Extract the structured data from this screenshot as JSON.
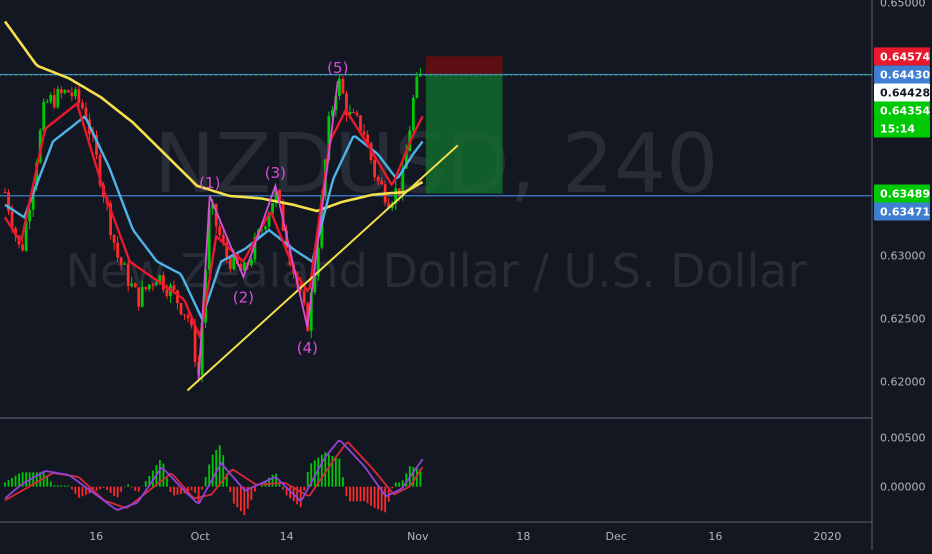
{
  "watermark": {
    "symbol": "NZDUSD, 240",
    "description": "New Zealand Dollar / U.S. Dollar"
  },
  "colors": {
    "background": "#131722",
    "axis_text": "#b2b5be",
    "grid_separator": "#2a2e39",
    "up_candle": "#00c805",
    "down_candle": "#ff2b2b",
    "ma_yellow": "#f5e04b",
    "ma_blue": "#4fb3e8",
    "ma_red": "#e8192c",
    "wave_purple": "#d64fd6",
    "hline_blue": "#3f7fd1",
    "hline_green": "#3fae5a",
    "trendline_yellow": "#f5e04b",
    "macd_line": "#8e44d9",
    "signal_line": "#d8283a"
  },
  "chart_data": [
    {
      "type": "candlestick",
      "name": "price",
      "symbol": "NZDUSD",
      "timeframe": "240",
      "title": "NZDUSD, 240",
      "subtitle": "New Zealand Dollar / U.S. Dollar",
      "x_ticks": [
        "16",
        "Oct",
        "14",
        "Nov",
        "18",
        "Dec",
        "16",
        "2020"
      ],
      "y_ticks": [
        "0.65000",
        "0.63000",
        "0.62500",
        "0.62000"
      ],
      "ylim": [
        0.6172,
        0.6502
      ],
      "price_labels": [
        {
          "value": "0.64574",
          "color": "#e8192c"
        },
        {
          "value": "0.64430",
          "color": "#3f7fd1"
        },
        {
          "value": "0.64428",
          "color": "#ffffff"
        },
        {
          "value": "0.64354",
          "color": "#00c805"
        },
        {
          "value": "15:14",
          "color": "#00c805"
        },
        {
          "value": "0.63489",
          "color": "#00c805"
        },
        {
          "value": "0.63471",
          "color": "#3f7fd1"
        }
      ],
      "horizontal_lines": [
        {
          "value": 0.6443,
          "style": "solid",
          "color": "#3f7fd1"
        },
        {
          "value": 0.64428,
          "style": "dotted",
          "color": "#3fae5a"
        },
        {
          "value": 0.63471,
          "style": "solid",
          "color": "#3f7fd1"
        }
      ],
      "wave_labels": [
        {
          "label": "(1)",
          "x": 12.8,
          "y": 0.6347
        },
        {
          "label": "(2)",
          "x": 14.9,
          "y": 0.628
        },
        {
          "label": "(3)",
          "x": 16.9,
          "y": 0.6355
        },
        {
          "label": "(4)",
          "x": 18.9,
          "y": 0.624
        },
        {
          "label": "(5)",
          "x": 20.8,
          "y": 0.6438
        }
      ],
      "wave_path": [
        {
          "x": 12.1,
          "y": 0.6202
        },
        {
          "x": 12.8,
          "y": 0.6347
        },
        {
          "x": 14.9,
          "y": 0.6283
        },
        {
          "x": 16.9,
          "y": 0.6355
        },
        {
          "x": 18.9,
          "y": 0.6243
        },
        {
          "x": 20.8,
          "y": 0.6438
        }
      ],
      "trendline": {
        "from": {
          "x": 11.4,
          "y": 0.6193
        },
        "to": {
          "x": 28.3,
          "y": 0.6387
        }
      },
      "position_box": {
        "x_start": 26.3,
        "x_end": 31.1,
        "y_stop": 0.64574,
        "y_entry": 0.64428,
        "y_target": 0.63489
      },
      "ohlc_seeds": [
        {
          "x": 0,
          "y": 0.635
        },
        {
          "x": 1,
          "y": 0.63
        },
        {
          "x": 2,
          "y": 0.638
        },
        {
          "x": 2.5,
          "y": 0.642
        },
        {
          "x": 4,
          "y": 0.643
        },
        {
          "x": 5,
          "y": 0.6415
        },
        {
          "x": 6,
          "y": 0.636
        },
        {
          "x": 7,
          "y": 0.63
        },
        {
          "x": 8.3,
          "y": 0.6265
        },
        {
          "x": 9.5,
          "y": 0.6285
        },
        {
          "x": 10.5,
          "y": 0.627
        },
        {
          "x": 11.5,
          "y": 0.625
        },
        {
          "x": 12.1,
          "y": 0.6205
        },
        {
          "x": 12.8,
          "y": 0.634
        },
        {
          "x": 13.8,
          "y": 0.63
        },
        {
          "x": 14.9,
          "y": 0.6285
        },
        {
          "x": 16,
          "y": 0.632
        },
        {
          "x": 16.9,
          "y": 0.635
        },
        {
          "x": 18,
          "y": 0.629
        },
        {
          "x": 18.9,
          "y": 0.6245
        },
        {
          "x": 19.5,
          "y": 0.63
        },
        {
          "x": 20.2,
          "y": 0.64
        },
        {
          "x": 20.8,
          "y": 0.644
        },
        {
          "x": 21.5,
          "y": 0.641
        },
        {
          "x": 22.4,
          "y": 0.64
        },
        {
          "x": 23.2,
          "y": 0.636
        },
        {
          "x": 24,
          "y": 0.6345
        },
        {
          "x": 24.8,
          "y": 0.6355
        },
        {
          "x": 25.6,
          "y": 0.643
        },
        {
          "x": 26.1,
          "y": 0.6445
        }
      ],
      "ma_yellow": [
        {
          "x": 0,
          "y": 0.6485
        },
        {
          "x": 2,
          "y": 0.645
        },
        {
          "x": 4,
          "y": 0.644
        },
        {
          "x": 6,
          "y": 0.6425
        },
        {
          "x": 8,
          "y": 0.6405
        },
        {
          "x": 10,
          "y": 0.638
        },
        {
          "x": 12,
          "y": 0.6355
        },
        {
          "x": 14,
          "y": 0.6347
        },
        {
          "x": 16,
          "y": 0.6345
        },
        {
          "x": 18,
          "y": 0.634
        },
        {
          "x": 19.5,
          "y": 0.6335
        },
        {
          "x": 21,
          "y": 0.6342
        },
        {
          "x": 23,
          "y": 0.6348
        },
        {
          "x": 25,
          "y": 0.635
        },
        {
          "x": 26.1,
          "y": 0.6358
        }
      ],
      "ma_blue": [
        {
          "x": 0,
          "y": 0.634
        },
        {
          "x": 1.2,
          "y": 0.633
        },
        {
          "x": 3,
          "y": 0.639
        },
        {
          "x": 5,
          "y": 0.641
        },
        {
          "x": 6.5,
          "y": 0.637
        },
        {
          "x": 8,
          "y": 0.632
        },
        {
          "x": 9.5,
          "y": 0.6295
        },
        {
          "x": 11,
          "y": 0.6285
        },
        {
          "x": 12.3,
          "y": 0.625
        },
        {
          "x": 13.5,
          "y": 0.6295
        },
        {
          "x": 15,
          "y": 0.6305
        },
        {
          "x": 16.5,
          "y": 0.632
        },
        {
          "x": 18,
          "y": 0.6305
        },
        {
          "x": 19.2,
          "y": 0.6295
        },
        {
          "x": 20.5,
          "y": 0.636
        },
        {
          "x": 21.8,
          "y": 0.6395
        },
        {
          "x": 23.3,
          "y": 0.638
        },
        {
          "x": 24.5,
          "y": 0.636
        },
        {
          "x": 25.5,
          "y": 0.638
        },
        {
          "x": 26.1,
          "y": 0.639
        }
      ],
      "ma_red": [
        {
          "x": 0,
          "y": 0.633
        },
        {
          "x": 1,
          "y": 0.631
        },
        {
          "x": 2.5,
          "y": 0.64
        },
        {
          "x": 4.5,
          "y": 0.642
        },
        {
          "x": 6.2,
          "y": 0.635
        },
        {
          "x": 7.8,
          "y": 0.6295
        },
        {
          "x": 9.5,
          "y": 0.628
        },
        {
          "x": 11.2,
          "y": 0.6265
        },
        {
          "x": 12.2,
          "y": 0.6235
        },
        {
          "x": 13.2,
          "y": 0.6315
        },
        {
          "x": 14.9,
          "y": 0.6295
        },
        {
          "x": 16.6,
          "y": 0.6335
        },
        {
          "x": 18.2,
          "y": 0.6285
        },
        {
          "x": 19,
          "y": 0.627
        },
        {
          "x": 20.3,
          "y": 0.639
        },
        {
          "x": 21.3,
          "y": 0.6415
        },
        {
          "x": 22.8,
          "y": 0.6385
        },
        {
          "x": 24.2,
          "y": 0.6355
        },
        {
          "x": 25.5,
          "y": 0.6395
        },
        {
          "x": 26.1,
          "y": 0.641
        }
      ]
    },
    {
      "type": "macd",
      "name": "oscillator",
      "y_ticks": [
        "0.00500",
        "0.00000"
      ],
      "ylim": [
        -0.0035,
        0.0068
      ],
      "macd_line": [
        {
          "x": 0,
          "y": -0.0012
        },
        {
          "x": 1,
          "y": 0.0002
        },
        {
          "x": 2.5,
          "y": 0.0016
        },
        {
          "x": 4,
          "y": 0.0012
        },
        {
          "x": 5.5,
          "y": -0.0006
        },
        {
          "x": 7,
          "y": -0.0024
        },
        {
          "x": 8.3,
          "y": -0.0016
        },
        {
          "x": 9.8,
          "y": 0.002
        },
        {
          "x": 11.2,
          "y": -0.0004
        },
        {
          "x": 12.1,
          "y": -0.0018
        },
        {
          "x": 13.5,
          "y": 0.0024
        },
        {
          "x": 15,
          "y": -0.0004
        },
        {
          "x": 16.9,
          "y": 0.001
        },
        {
          "x": 18.5,
          "y": -0.0015
        },
        {
          "x": 20,
          "y": 0.003
        },
        {
          "x": 20.9,
          "y": 0.0048
        },
        {
          "x": 22.5,
          "y": 0.002
        },
        {
          "x": 23.8,
          "y": -0.001
        },
        {
          "x": 24.8,
          "y": -0.0002
        },
        {
          "x": 26.1,
          "y": 0.0028
        }
      ],
      "signal_line": [
        {
          "x": 0,
          "y": -0.0014
        },
        {
          "x": 1.5,
          "y": 0.0
        },
        {
          "x": 3,
          "y": 0.0014
        },
        {
          "x": 4.6,
          "y": 0.001
        },
        {
          "x": 6.2,
          "y": -0.0014
        },
        {
          "x": 7.6,
          "y": -0.0022
        },
        {
          "x": 9,
          "y": -0.0004
        },
        {
          "x": 10.4,
          "y": 0.0014
        },
        {
          "x": 11.8,
          "y": -0.0012
        },
        {
          "x": 12.9,
          "y": -0.0008
        },
        {
          "x": 14.2,
          "y": 0.0018
        },
        {
          "x": 15.7,
          "y": 0.0002
        },
        {
          "x": 17.5,
          "y": 0.0004
        },
        {
          "x": 19,
          "y": -0.001
        },
        {
          "x": 20.5,
          "y": 0.0026
        },
        {
          "x": 21.4,
          "y": 0.0046
        },
        {
          "x": 23,
          "y": 0.0018
        },
        {
          "x": 24.3,
          "y": -0.0008
        },
        {
          "x": 25.3,
          "y": 0.0
        },
        {
          "x": 26.1,
          "y": 0.002
        }
      ]
    }
  ]
}
